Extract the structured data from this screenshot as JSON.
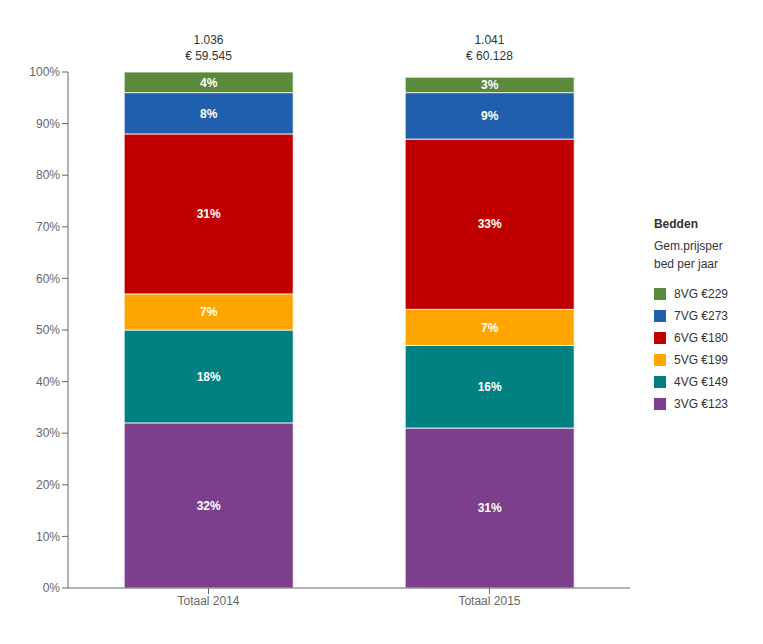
{
  "chart_data": {
    "type": "bar",
    "stacked": true,
    "categories": [
      "Totaal 2014",
      "Totaal 2015"
    ],
    "series": [
      {
        "name": "3VG €123",
        "color": "#7B3F8C",
        "values": [
          32,
          31
        ],
        "value_labels": [
          "32%",
          "31%"
        ]
      },
      {
        "name": "4VG €149",
        "color": "#008080",
        "values": [
          18,
          16
        ],
        "value_labels": [
          "18%",
          "16%"
        ]
      },
      {
        "name": "5VG €199",
        "color": "#FFA500",
        "values": [
          7,
          7
        ],
        "value_labels": [
          "7%",
          "7%"
        ]
      },
      {
        "name": "6VG €180",
        "color": "#C00000",
        "values": [
          31,
          33
        ],
        "value_labels": [
          "31%",
          "33%"
        ]
      },
      {
        "name": "7VG €273",
        "color": "#1F5FAD",
        "values": [
          8,
          9
        ],
        "value_labels": [
          "8%",
          "9%"
        ]
      },
      {
        "name": "8VG €229",
        "color": "#5A8A3C",
        "values": [
          4,
          3
        ],
        "value_labels": [
          "4%",
          "3%"
        ]
      }
    ],
    "ylim": [
      0,
      100
    ],
    "yticks": [
      {
        "value": 0,
        "label": "0%"
      },
      {
        "value": 10,
        "label": "10%"
      },
      {
        "value": 20,
        "label": "20%"
      },
      {
        "value": 30,
        "label": "30%"
      },
      {
        "value": 40,
        "label": "40%"
      },
      {
        "value": 50,
        "label": "50%"
      },
      {
        "value": 60,
        "label": "60%"
      },
      {
        "value": 70,
        "label": "70%"
      },
      {
        "value": 80,
        "label": "80%"
      },
      {
        "value": 90,
        "label": "90%"
      },
      {
        "value": 100,
        "label": "100%"
      }
    ],
    "data_labels": true,
    "grid": false,
    "legend": "right",
    "legend_title": "Bedden",
    "legend_subtitle": "Gem.prijsper\nbed per jaar",
    "annotations": [
      {
        "category": "Totaal 2014",
        "text": "1.036"
      },
      {
        "category": "Totaal 2014",
        "text": "€ 59.545"
      },
      {
        "category": "Totaal 2015",
        "text": "1.041"
      },
      {
        "category": "Totaal 2015",
        "text": "€ 60.128"
      }
    ]
  }
}
